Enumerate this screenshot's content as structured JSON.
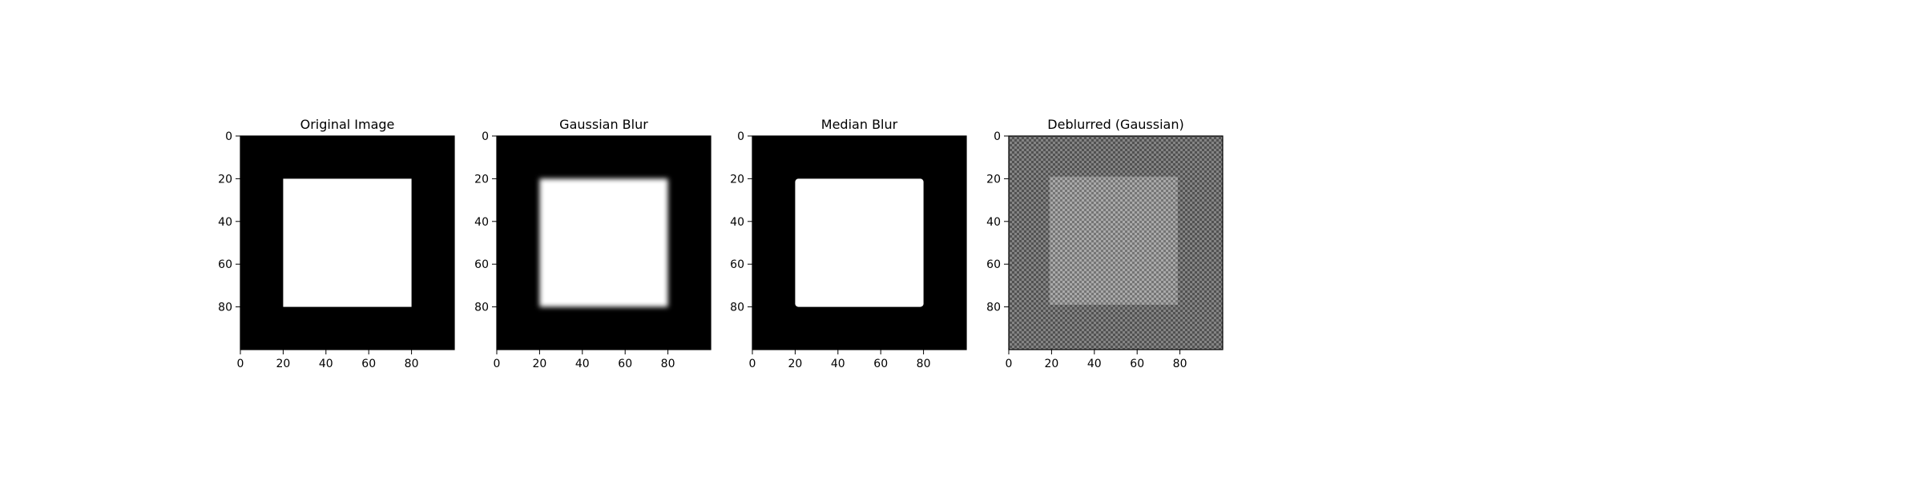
{
  "chart_data": [
    {
      "type": "heatmap",
      "title": "Original Image",
      "xlabel": "",
      "ylabel": "",
      "xlim": [
        0,
        100
      ],
      "ylim": [
        100,
        0
      ],
      "x_ticks": [
        "0",
        "20",
        "40",
        "60",
        "80"
      ],
      "y_ticks": [
        "0",
        "20",
        "40",
        "60",
        "80"
      ],
      "image": {
        "size": [
          100,
          100
        ],
        "background_value": 0,
        "square": {
          "x0": 20,
          "x1": 80,
          "y0": 20,
          "y1": 80,
          "value": 255
        },
        "effect": "none"
      },
      "colormap": "gray"
    },
    {
      "type": "heatmap",
      "title": "Gaussian Blur",
      "xlabel": "",
      "ylabel": "",
      "xlim": [
        0,
        100
      ],
      "ylim": [
        100,
        0
      ],
      "x_ticks": [
        "0",
        "20",
        "40",
        "60",
        "80"
      ],
      "y_ticks": [
        "0",
        "20",
        "40",
        "60",
        "80"
      ],
      "image": {
        "size": [
          100,
          100
        ],
        "background_value": 0,
        "square": {
          "x0": 20,
          "x1": 80,
          "y0": 20,
          "y1": 80,
          "value": 255
        },
        "effect": "gaussian-blur"
      },
      "colormap": "gray"
    },
    {
      "type": "heatmap",
      "title": "Median Blur",
      "xlabel": "",
      "ylabel": "",
      "xlim": [
        0,
        100
      ],
      "ylim": [
        100,
        0
      ],
      "x_ticks": [
        "0",
        "20",
        "40",
        "60",
        "80"
      ],
      "y_ticks": [
        "0",
        "20",
        "40",
        "60",
        "80"
      ],
      "image": {
        "size": [
          100,
          100
        ],
        "background_value": 0,
        "square": {
          "x0": 20,
          "x1": 80,
          "y0": 20,
          "y1": 80,
          "value": 255
        },
        "effect": "median-blur"
      },
      "colormap": "gray"
    },
    {
      "type": "heatmap",
      "title": "Deblurred (Gaussian)",
      "xlabel": "",
      "ylabel": "",
      "xlim": [
        0,
        100
      ],
      "ylim": [
        100,
        0
      ],
      "x_ticks": [
        "0",
        "20",
        "40",
        "60",
        "80"
      ],
      "y_ticks": [
        "0",
        "20",
        "40",
        "60",
        "80"
      ],
      "image": {
        "size": [
          100,
          100
        ],
        "background_value": 105,
        "square": {
          "x0": 19,
          "x1": 79,
          "y0": 19,
          "y1": 79,
          "value": 150
        },
        "effect": "deconvolution-ringing"
      },
      "colormap": "gray"
    }
  ],
  "colors": {
    "background": "#ffffff",
    "axis": "#000000",
    "image_low": "#000000",
    "image_high": "#ffffff"
  }
}
